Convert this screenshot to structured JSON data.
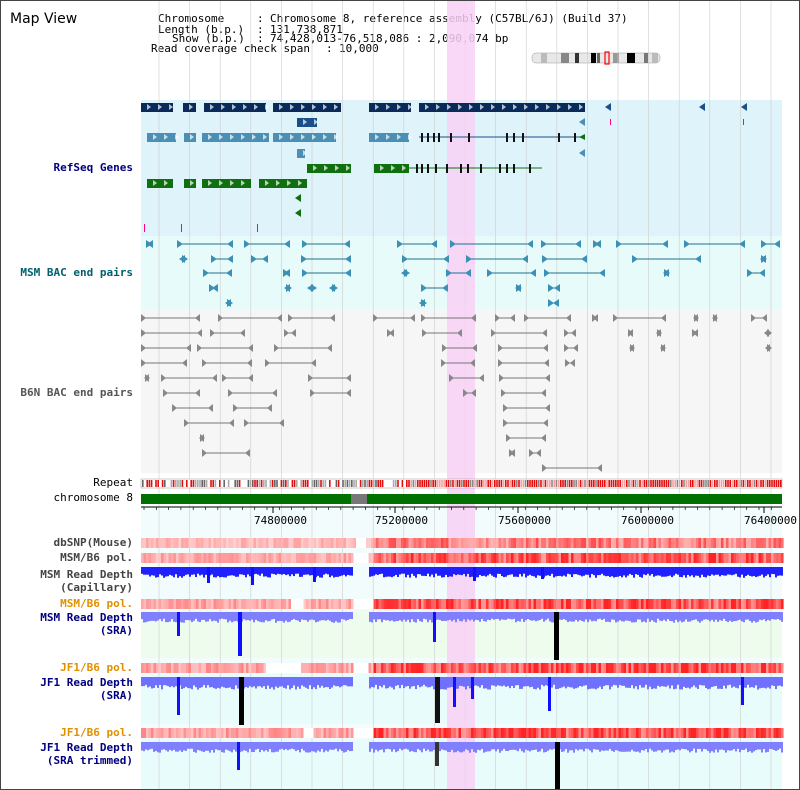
{
  "view_title": "Map View",
  "header": {
    "chromosome_key": "Chromosome",
    "chromosome_val": "Chromosome 8, reference assembly (C57BL/6J) (Build 37)",
    "length_key": "Length (b.p.)",
    "length_val": "131,738,871",
    "show_key": "Show (b.p.)",
    "show_val": "74,428,013-76,518,086 : 2,090,074 bp",
    "span_key": "Read coverage check span",
    "span_val": "10,000"
  },
  "tracks": {
    "refseq": "RefSeq Genes",
    "msm_bac": "MSM BAC end pairs",
    "b6n_bac": "B6N BAC end pairs",
    "repeat": "Repeat",
    "chromosome": "chromosome 8",
    "dbsnp": "dbSNP(Mouse)",
    "msm_b6_pol": "MSM/B6 pol.",
    "msm_depth_cap_1": "MSM Read Depth",
    "msm_depth_cap_2": "(Capillary)",
    "msm_b6_pol_2": "MSM/B6 pol.",
    "msm_depth_sra_1": "MSM Read Depth",
    "msm_depth_sra_2": "(SRA)",
    "jf1_b6_pol": "JF1/B6 pol.",
    "jf1_depth_sra_1": "JF1 Read Depth",
    "jf1_depth_sra_2": "(SRA)",
    "jf1_b6_pol_2": "JF1/B6 pol.",
    "jf1_depth_trim_1": "JF1 Read Depth",
    "jf1_depth_trim_2": "(SRA trimmed)"
  },
  "axis": {
    "ticks": [
      "74800000",
      "75200000",
      "75600000",
      "76000000",
      "76400000"
    ]
  },
  "colors": {
    "refseq_bg": "#dff3fb",
    "msm_bac_bg": "#e8fbfb",
    "b6n_bac_bg": "#f6f6f6",
    "highlight": "#f8d0f4",
    "label_blue": "#000080",
    "label_teal": "#006070",
    "label_orange": "#e09000",
    "chromosome_green": "#007000",
    "depth_blue": "#3030ff"
  }
}
